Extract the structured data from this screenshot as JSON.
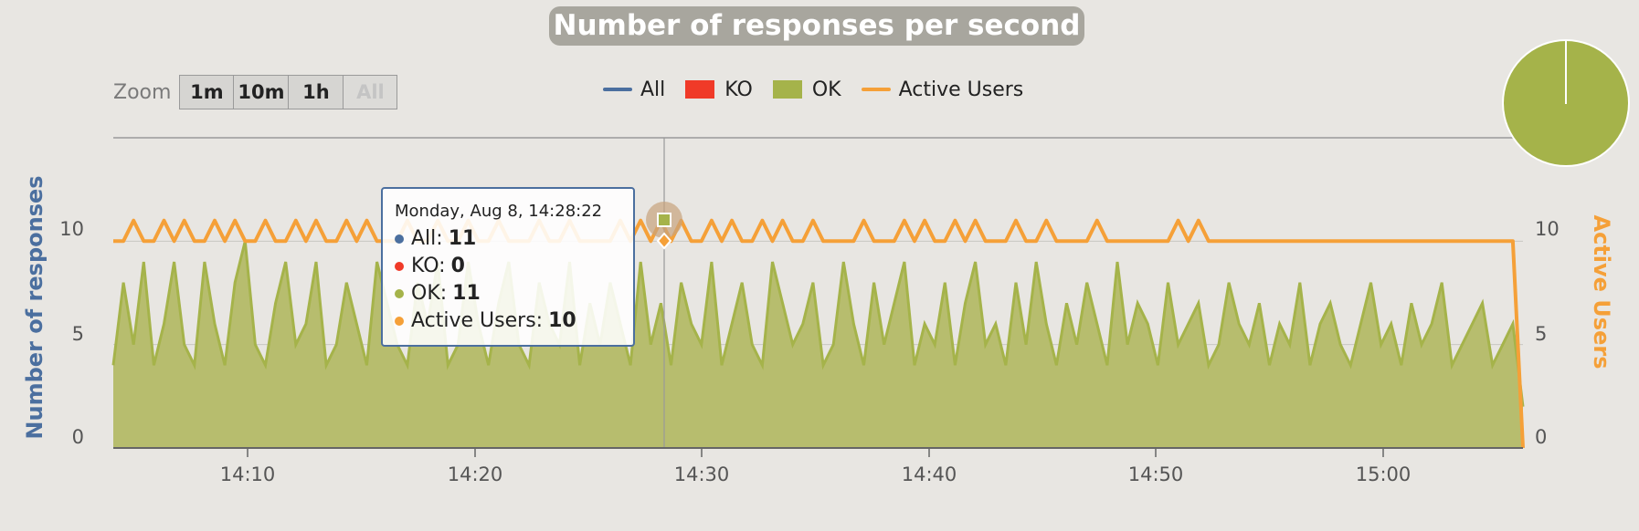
{
  "title": "Number of responses per second",
  "zoom": {
    "label": "Zoom",
    "buttons": [
      {
        "label": "1m",
        "enabled": true
      },
      {
        "label": "10m",
        "enabled": true
      },
      {
        "label": "1h",
        "enabled": true
      },
      {
        "label": "All",
        "enabled": false
      }
    ]
  },
  "legend": [
    {
      "label": "All",
      "color": "#4b6f9f",
      "symbol": "line"
    },
    {
      "label": "KO",
      "color": "#f03a28",
      "symbol": "box"
    },
    {
      "label": "OK",
      "color": "#a5b34a",
      "symbol": "box"
    },
    {
      "label": "Active Users",
      "color": "#f5a038",
      "symbol": "line"
    }
  ],
  "tooltip": {
    "header": "Monday, Aug 8, 14:28:22",
    "rows": [
      {
        "label": "All:",
        "value": "11",
        "color": "#4b6f9f"
      },
      {
        "label": "KO:",
        "value": "0",
        "color": "#f03a28"
      },
      {
        "label": "OK:",
        "value": "11",
        "color": "#a5b34a"
      },
      {
        "label": "Active Users:",
        "value": "10",
        "color": "#f5a038"
      }
    ]
  },
  "chart_data": {
    "type": "area",
    "title": "Number of responses per second",
    "xlabel": "",
    "ylabel": "Number of responses",
    "y2label": "Active Users",
    "x_ticks": [
      "14:10",
      "14:20",
      "14:30",
      "14:40",
      "14:50",
      "15:00"
    ],
    "y_ticks": [
      "0",
      "5",
      "10"
    ],
    "y2_ticks": [
      "0",
      "5",
      "10"
    ],
    "xlim": [
      "14:04:10",
      "15:06:10"
    ],
    "ylim": [
      0,
      15
    ],
    "y2lim": [
      0,
      15
    ],
    "grid": "horizontal",
    "legend_position": "top-center",
    "series": [
      {
        "name": "OK",
        "axis": "left",
        "color": "#a5b34a",
        "type": "area",
        "values": [
          4,
          8,
          5,
          9,
          4,
          6,
          9,
          5,
          4,
          9,
          6,
          4,
          8,
          10,
          5,
          4,
          7,
          9,
          5,
          6,
          9,
          4,
          5,
          8,
          6,
          4,
          9,
          7,
          5,
          4,
          8,
          6,
          9,
          4,
          5,
          9,
          6,
          4,
          7,
          9,
          5,
          4,
          8,
          6,
          5,
          9,
          4,
          7,
          5,
          8,
          6,
          4,
          9,
          5,
          7,
          4,
          8,
          6,
          5,
          9,
          4,
          6,
          8,
          5,
          4,
          9,
          7,
          5,
          6,
          8,
          4,
          5,
          9,
          6,
          4,
          8,
          5,
          7,
          9,
          4,
          6,
          5,
          8,
          4,
          7,
          9,
          5,
          6,
          4,
          8,
          5,
          9,
          6,
          4,
          7,
          5,
          8,
          6,
          4,
          9,
          5,
          7,
          6,
          4,
          8,
          5,
          6,
          7,
          4,
          5,
          8,
          6,
          5,
          7,
          4,
          6,
          5,
          8,
          4,
          6,
          7,
          5,
          4,
          6,
          8,
          5,
          6,
          4,
          7,
          5,
          6,
          8,
          4,
          5,
          6,
          7,
          4,
          5,
          6,
          2
        ]
      },
      {
        "name": "KO",
        "axis": "left",
        "color": "#f03a28",
        "type": "area",
        "values": [
          0
        ]
      },
      {
        "name": "Active Users",
        "axis": "right",
        "color": "#f5a038",
        "type": "line",
        "values": [
          10,
          10,
          11,
          10,
          10,
          11,
          10,
          11,
          10,
          10,
          11,
          10,
          11,
          10,
          10,
          11,
          10,
          10,
          11,
          10,
          11,
          10,
          10,
          11,
          10,
          11,
          10,
          10,
          10,
          11,
          10,
          10,
          11,
          10,
          10,
          11,
          10,
          10,
          11,
          10,
          10,
          10,
          11,
          10,
          10,
          11,
          10,
          10,
          10,
          10,
          11,
          10,
          11,
          10,
          11,
          10,
          11,
          10,
          10,
          11,
          10,
          11,
          10,
          10,
          11,
          10,
          11,
          10,
          10,
          11,
          10,
          10,
          10,
          10,
          11,
          10,
          10,
          10,
          11,
          10,
          11,
          10,
          10,
          11,
          10,
          11,
          10,
          10,
          10,
          11,
          10,
          10,
          11,
          10,
          10,
          10,
          10,
          11,
          10,
          10,
          10,
          10,
          10,
          10,
          10,
          11,
          10,
          11,
          10,
          10,
          10,
          10,
          10,
          10,
          10,
          10,
          10,
          10,
          10,
          10,
          10,
          10,
          10,
          10,
          10,
          10,
          10,
          10,
          10,
          10,
          10,
          10,
          10,
          10,
          10,
          10,
          10,
          10,
          10,
          0
        ]
      }
    ]
  },
  "navigator": {
    "type": "pie",
    "color": "#a5b34a"
  }
}
